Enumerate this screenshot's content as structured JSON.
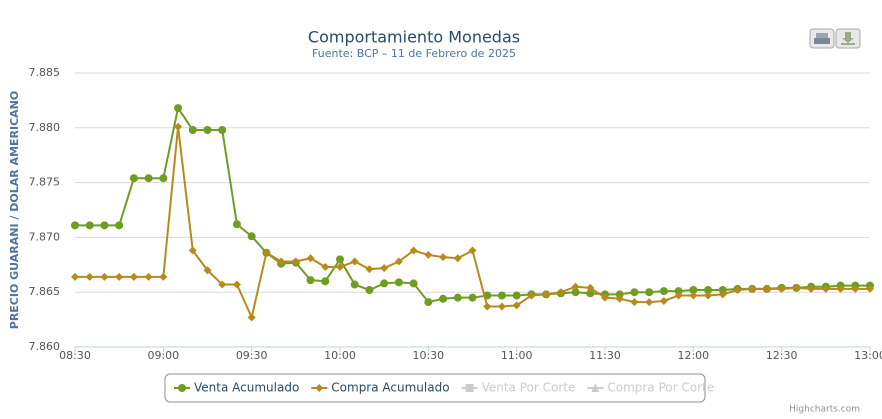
{
  "chart_data": {
    "type": "line",
    "title": "Comportamiento Monedas",
    "subtitle": "Fuente: BCP – 11 de Febrero de 2025",
    "y_axis_label": "PRECIO GUARANI / DOLAR AMERICANO",
    "credits": "Highcharts.com",
    "x": [
      "08:30",
      "08:35",
      "08:40",
      "08:45",
      "08:50",
      "08:55",
      "09:00",
      "09:05",
      "09:10",
      "09:15",
      "09:20",
      "09:25",
      "09:30",
      "09:35",
      "09:40",
      "09:45",
      "09:50",
      "09:55",
      "10:00",
      "10:05",
      "10:10",
      "10:15",
      "10:20",
      "10:25",
      "10:30",
      "10:35",
      "10:40",
      "10:45",
      "10:50",
      "10:55",
      "11:00",
      "11:05",
      "11:10",
      "11:15",
      "11:20",
      "11:25",
      "11:30",
      "11:35",
      "11:40",
      "11:45",
      "11:50",
      "11:55",
      "12:00",
      "12:05",
      "12:10",
      "12:15",
      "12:20",
      "12:25",
      "12:30",
      "12:35",
      "12:40",
      "12:45",
      "12:50",
      "12:55",
      "13:00"
    ],
    "xlim": [
      "08:30",
      "13:00"
    ],
    "xticks": [
      "08:30",
      "09:00",
      "09:30",
      "10:00",
      "10:30",
      "11:00",
      "11:30",
      "12:00",
      "12:30",
      "13:00"
    ],
    "ylim": [
      7.86,
      7.885
    ],
    "yticks": [
      {
        "value": 7.86,
        "label": "7.860"
      },
      7.865,
      {
        "value": 7.87,
        "label": "7.870"
      },
      7.875,
      {
        "value": 7.88,
        "label": "7.880"
      },
      7.885
    ],
    "grid": true,
    "series": [
      {
        "name": "Venta Acumulado",
        "color": "#6e9d21",
        "marker": "circle",
        "values": [
          7.8711,
          7.8711,
          7.8711,
          7.8711,
          7.8754,
          7.8754,
          7.8754,
          7.8818,
          7.8798,
          7.8798,
          7.8798,
          7.8712,
          7.8701,
          7.8686,
          7.8676,
          7.8677,
          7.8661,
          7.866,
          7.868,
          7.8657,
          7.8652,
          7.8658,
          7.8659,
          7.8658,
          7.8641,
          7.8644,
          7.8645,
          7.8645,
          7.8647,
          7.8647,
          7.8647,
          7.8648,
          7.8648,
          7.8649,
          7.865,
          7.8649,
          7.8648,
          7.8648,
          7.865,
          7.865,
          7.8651,
          7.8651,
          7.8652,
          7.8652,
          7.8652,
          7.8653,
          7.8653,
          7.8653,
          7.8654,
          7.8654,
          7.8655,
          7.8655,
          7.8656,
          7.8656,
          7.8656
        ]
      },
      {
        "name": "Compra Acumulado",
        "color": "#b88a1d",
        "marker": "diamond",
        "values": [
          7.8664,
          7.8664,
          7.8664,
          7.8664,
          7.8664,
          7.8664,
          7.8664,
          7.8801,
          7.8688,
          7.867,
          7.8657,
          7.8657,
          7.8627,
          7.8686,
          7.8678,
          7.8678,
          7.8681,
          7.8673,
          7.8673,
          7.8678,
          7.8671,
          7.8672,
          7.8678,
          7.8688,
          7.8684,
          7.8682,
          7.8681,
          7.8688,
          7.8637,
          7.8637,
          7.8638,
          7.8647,
          7.8648,
          7.865,
          7.8655,
          7.8654,
          7.8645,
          7.8644,
          7.8641,
          7.8641,
          7.8642,
          7.8647,
          7.8647,
          7.8647,
          7.8648,
          7.8652,
          7.8653,
          7.8653,
          7.8653,
          7.8654,
          7.8653,
          7.8653,
          7.8653,
          7.8653,
          7.8653
        ]
      }
    ],
    "legend_hidden": [
      "Venta Por Corte",
      "Compra Por Corte"
    ]
  }
}
